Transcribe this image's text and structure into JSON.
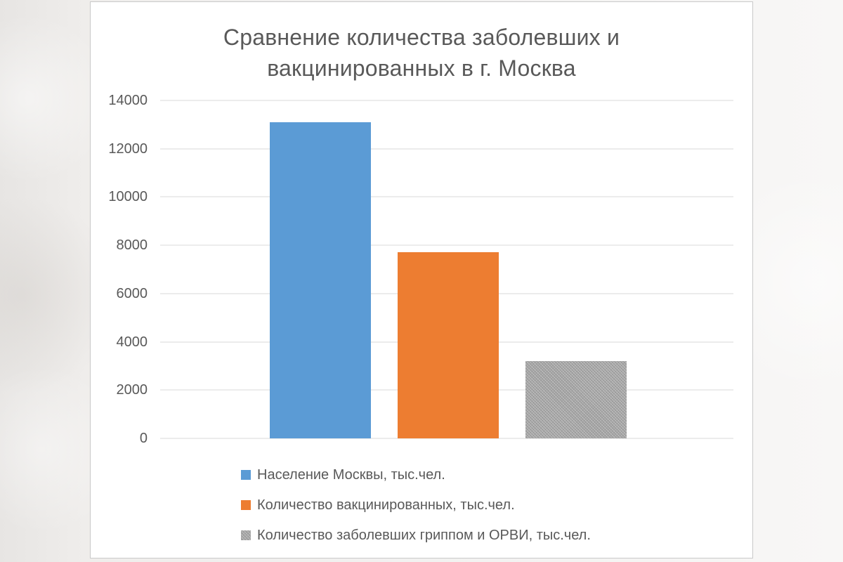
{
  "chart": {
    "title_lines": {
      "line1": "Сравнение количества заболевших и",
      "line2": "вакцинированных в г. Москва"
    }
  },
  "chart_data": {
    "type": "bar",
    "title": "Сравнение количества заболевших и вакцинированных в г. Москва",
    "categories": [
      "Население Москвы",
      "Количество вакцинированных",
      "Количество заболевших гриппом и ОРВИ"
    ],
    "values": [
      13100,
      7700,
      3200
    ],
    "colors": [
      "#5b9bd5",
      "#ed7d31",
      "#a5a5a5"
    ],
    "legend": {
      "0": "Население Москвы, тыс.чел.",
      "1": "Количество вакцинированных, тыс.чел.",
      "2": "Количество заболевших гриппом и ОРВИ, тыс.чел."
    },
    "legend_position": "bottom-left-stacked",
    "xlabel": "",
    "ylabel": "",
    "ylim": [
      0,
      14000
    ],
    "yticks": [
      0,
      2000,
      4000,
      6000,
      8000,
      10000,
      12000,
      14000
    ],
    "grid": true
  }
}
